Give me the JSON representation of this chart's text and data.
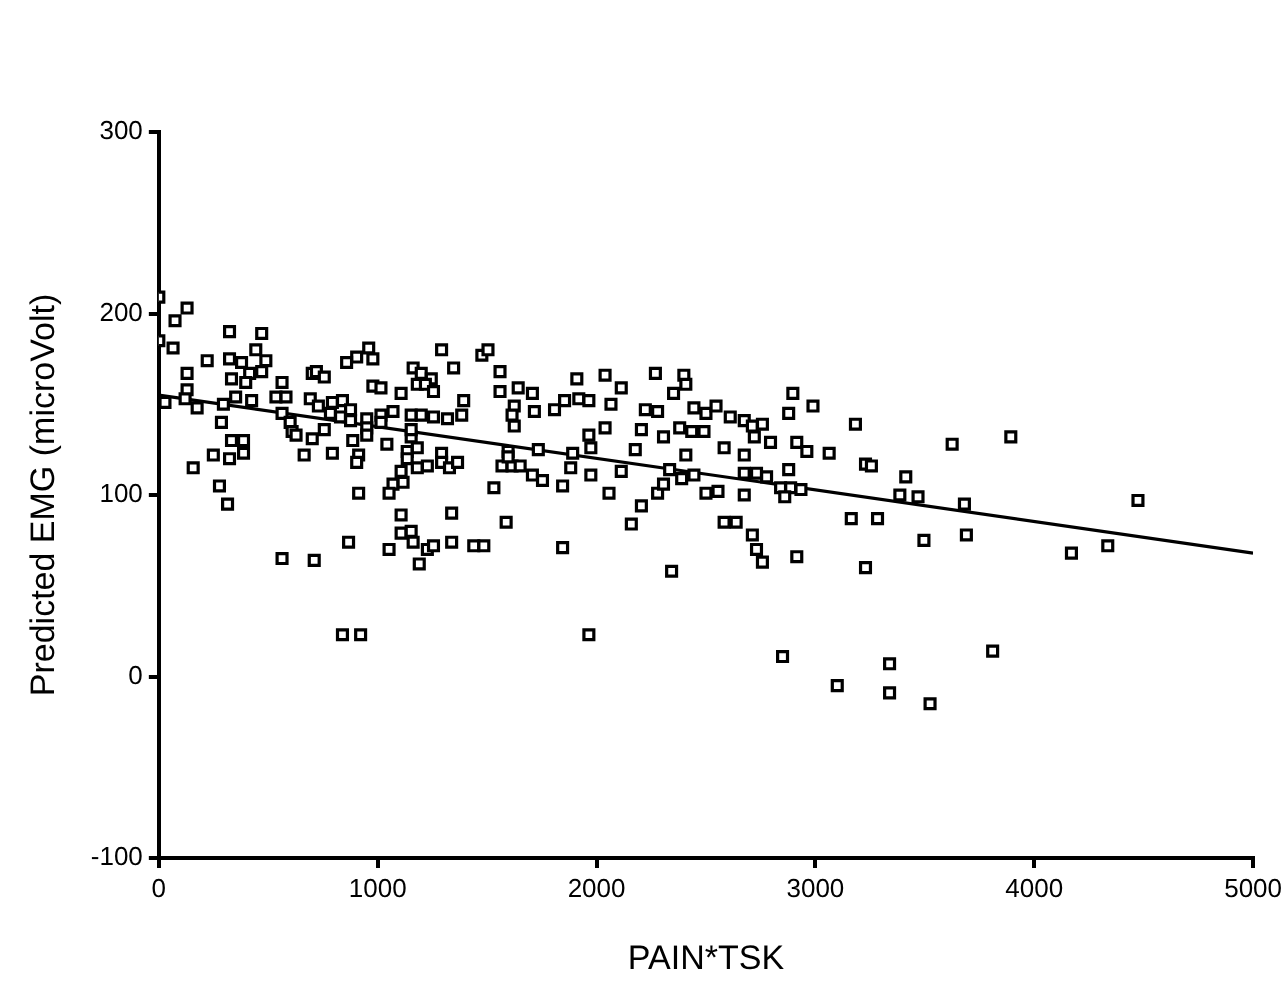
{
  "chart_data": {
    "type": "scatter",
    "xlabel": "PAIN*TSK",
    "ylabel": "Predicted EMG (microVolt)",
    "xlim": [
      0,
      5000
    ],
    "xticks": [
      0,
      1000,
      2000,
      3000,
      4000,
      5000
    ],
    "ylim": [
      -100,
      300
    ],
    "yticks": [
      -100,
      0,
      100,
      200,
      300
    ],
    "grid": false,
    "legend": false,
    "marker": "square",
    "series": [
      {
        "color": "#000000",
        "x": [
          0,
          0,
          74,
          129,
          65,
          28,
          129,
          129,
          120,
          175,
          221,
          323,
          470,
          323,
          378,
          443,
          489,
          470,
          415,
          332,
          397,
          351,
          424,
          295,
          286,
          332,
          387,
          387,
          249,
          323,
          157,
          277,
          314,
          563,
          535,
          581,
          563,
          600,
          609,
          627,
          701,
          664,
          756,
          793,
          701,
          720,
          756,
          692,
          729,
          793,
          839,
          876,
          830,
          784,
          876,
          950,
          1015,
          1070,
          1153,
          1199,
          1255,
          1319,
          1384,
          1393,
          950,
          886,
          913,
          904,
          950,
          1015,
          1042,
          1135,
          1153,
          1153,
          1181,
          1135,
          1107,
          1070,
          1116,
          1052,
          1181,
          1227,
          1292,
          1292,
          1328,
          1365,
          1107,
          1107,
          1153,
          1162,
          1190,
          1227,
          1255,
          1338,
          1338,
          1439,
          1485,
          1531,
          1587,
          1596,
          1568,
          1614,
          1596,
          563,
          710,
          867,
          1052,
          913,
          959,
          904,
          858,
          978,
          978,
          1015,
          1107,
          1162,
          1199,
          1245,
          1181,
          1218,
          1255,
          1292,
          1347,
          1476,
          1504,
          1559,
          1559,
          1642,
          1624,
          1614,
          1624,
          839,
          922,
          1707,
          1716,
          1910,
          2039,
          2113,
          2269,
          2399,
          2408,
          2352,
          2897,
          2989,
          3183,
          1919,
          1965,
          1854,
          1808,
          2066,
          2223,
          2279,
          2445,
          2500,
          2546,
          2611,
          2675,
          2712,
          2758,
          2878,
          2039,
          2205,
          2306,
          2380,
          2435,
          2491,
          2721,
          2795,
          2915,
          2961,
          3063,
          1965,
          1734,
          1891,
          1974,
          2177,
          2408,
          2583,
          2675,
          3229,
          1651,
          1707,
          1753,
          1845,
          1882,
          1974,
          2113,
          2057,
          2205,
          2159,
          2279,
          2306,
          2334,
          2389,
          2445,
          2500,
          2555,
          2675,
          2675,
          2731,
          2777,
          2878,
          2841,
          2887,
          2860,
          2934,
          2583,
          2638,
          2712,
          2731,
          2758,
          2915,
          3164,
          3284,
          3229,
          1845,
          2343,
          1965,
          2850,
          3100,
          3339,
          3339,
          3256,
          3413,
          3386,
          3469,
          3625,
          3893,
          3681,
          3496,
          3690,
          4474,
          4170,
          4336,
          3524,
          3810
        ],
        "values": [
          209,
          185,
          196,
          203,
          181,
          151,
          167,
          158,
          153,
          148,
          174,
          190,
          189,
          175,
          173,
          180,
          174,
          168,
          167,
          164,
          162,
          154,
          152,
          150,
          140,
          130,
          130,
          123,
          122,
          120,
          115,
          105,
          95,
          162,
          154,
          154,
          145,
          140,
          135,
          133,
          131,
          122,
          136,
          123,
          167,
          168,
          165,
          153,
          149,
          151,
          152,
          147,
          143,
          145,
          141,
          142,
          144,
          146,
          144,
          144,
          143,
          142,
          144,
          152,
          137,
          130,
          122,
          118,
          133,
          140,
          128,
          124,
          132,
          136,
          126,
          120,
          113,
          106,
          107,
          101,
          115,
          116,
          123,
          118,
          115,
          118,
          89,
          79,
          80,
          74,
          62,
          70,
          72,
          74,
          90,
          72,
          72,
          104,
          85,
          124,
          116,
          116,
          121,
          65,
          64,
          74,
          70,
          101,
          181,
          176,
          173,
          175,
          160,
          159,
          156,
          170,
          167,
          164,
          161,
          161,
          157,
          180,
          170,
          177,
          180,
          168,
          157,
          159,
          149,
          144,
          138,
          23,
          23,
          156,
          146,
          164,
          166,
          159,
          167,
          166,
          161,
          156,
          156,
          149,
          139,
          153,
          152,
          152,
          147,
          150,
          147,
          146,
          148,
          145,
          149,
          143,
          141,
          138,
          139,
          145,
          137,
          136,
          132,
          137,
          135,
          135,
          132,
          129,
          129,
          124,
          123,
          133,
          125,
          123,
          126,
          125,
          122,
          126,
          122,
          117,
          116,
          111,
          108,
          105,
          115,
          111,
          113,
          101,
          94,
          84,
          101,
          106,
          114,
          109,
          111,
          101,
          102,
          100,
          112,
          112,
          110,
          114,
          104,
          104,
          99,
          103,
          85,
          85,
          78,
          70,
          63,
          66,
          87,
          87,
          60,
          71,
          58,
          23,
          11,
          -5,
          7,
          -9,
          116,
          110,
          100,
          99,
          128,
          132,
          95,
          75,
          78,
          97,
          68,
          72,
          -15,
          14
        ]
      },
      {
        "type": "line",
        "color": "#000000",
        "marker": "none",
        "x": [
          0,
          5000
        ],
        "values": [
          155,
          68
        ]
      }
    ]
  }
}
